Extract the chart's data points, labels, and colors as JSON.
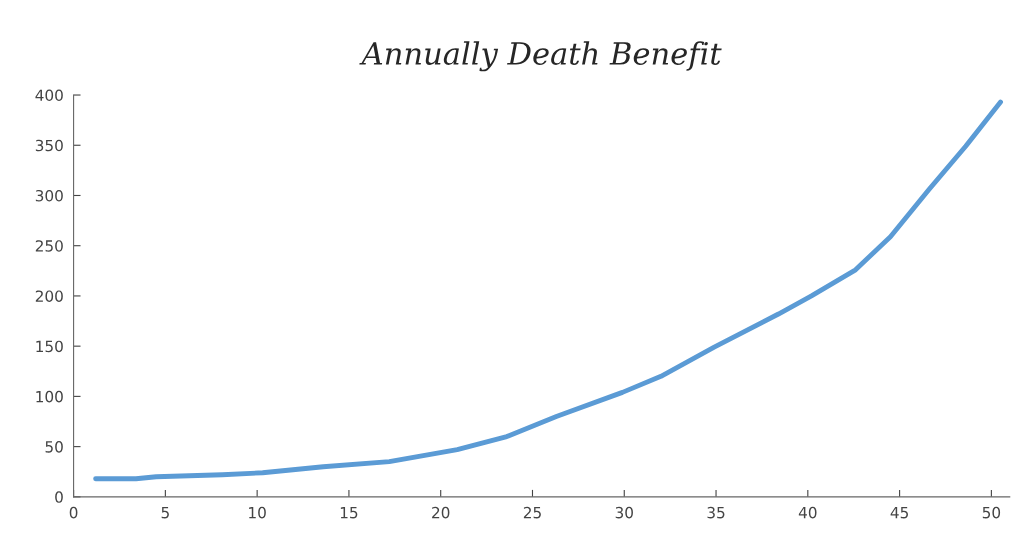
{
  "chart_data": {
    "type": "line",
    "title": "Annually Death Benefit",
    "x": [
      1.2,
      3.4,
      4.5,
      8.1,
      10.3,
      13.6,
      17.2,
      20.9,
      23.6,
      26.3,
      29.9,
      32,
      34.9,
      38.4,
      40.2,
      42.6,
      44.5,
      46.6,
      48.6,
      50.5
    ],
    "series": [
      {
        "color": "#5b9bd5",
        "values": [
          18,
          18,
          20,
          22,
          24,
          30,
          35,
          47,
          60,
          80,
          104,
          120,
          149,
          182,
          200,
          226,
          259,
          306,
          349,
          393
        ]
      }
    ],
    "xlim": [
      0,
      51
    ],
    "xticks": [
      0,
      5,
      10,
      15,
      20,
      25,
      30,
      35,
      40,
      45,
      50
    ],
    "ylim": [
      0,
      400
    ],
    "yticks": [
      0,
      50,
      100,
      150,
      200,
      250,
      300,
      350,
      400
    ],
    "grid": false,
    "marker": "none",
    "line_style": "solid"
  }
}
